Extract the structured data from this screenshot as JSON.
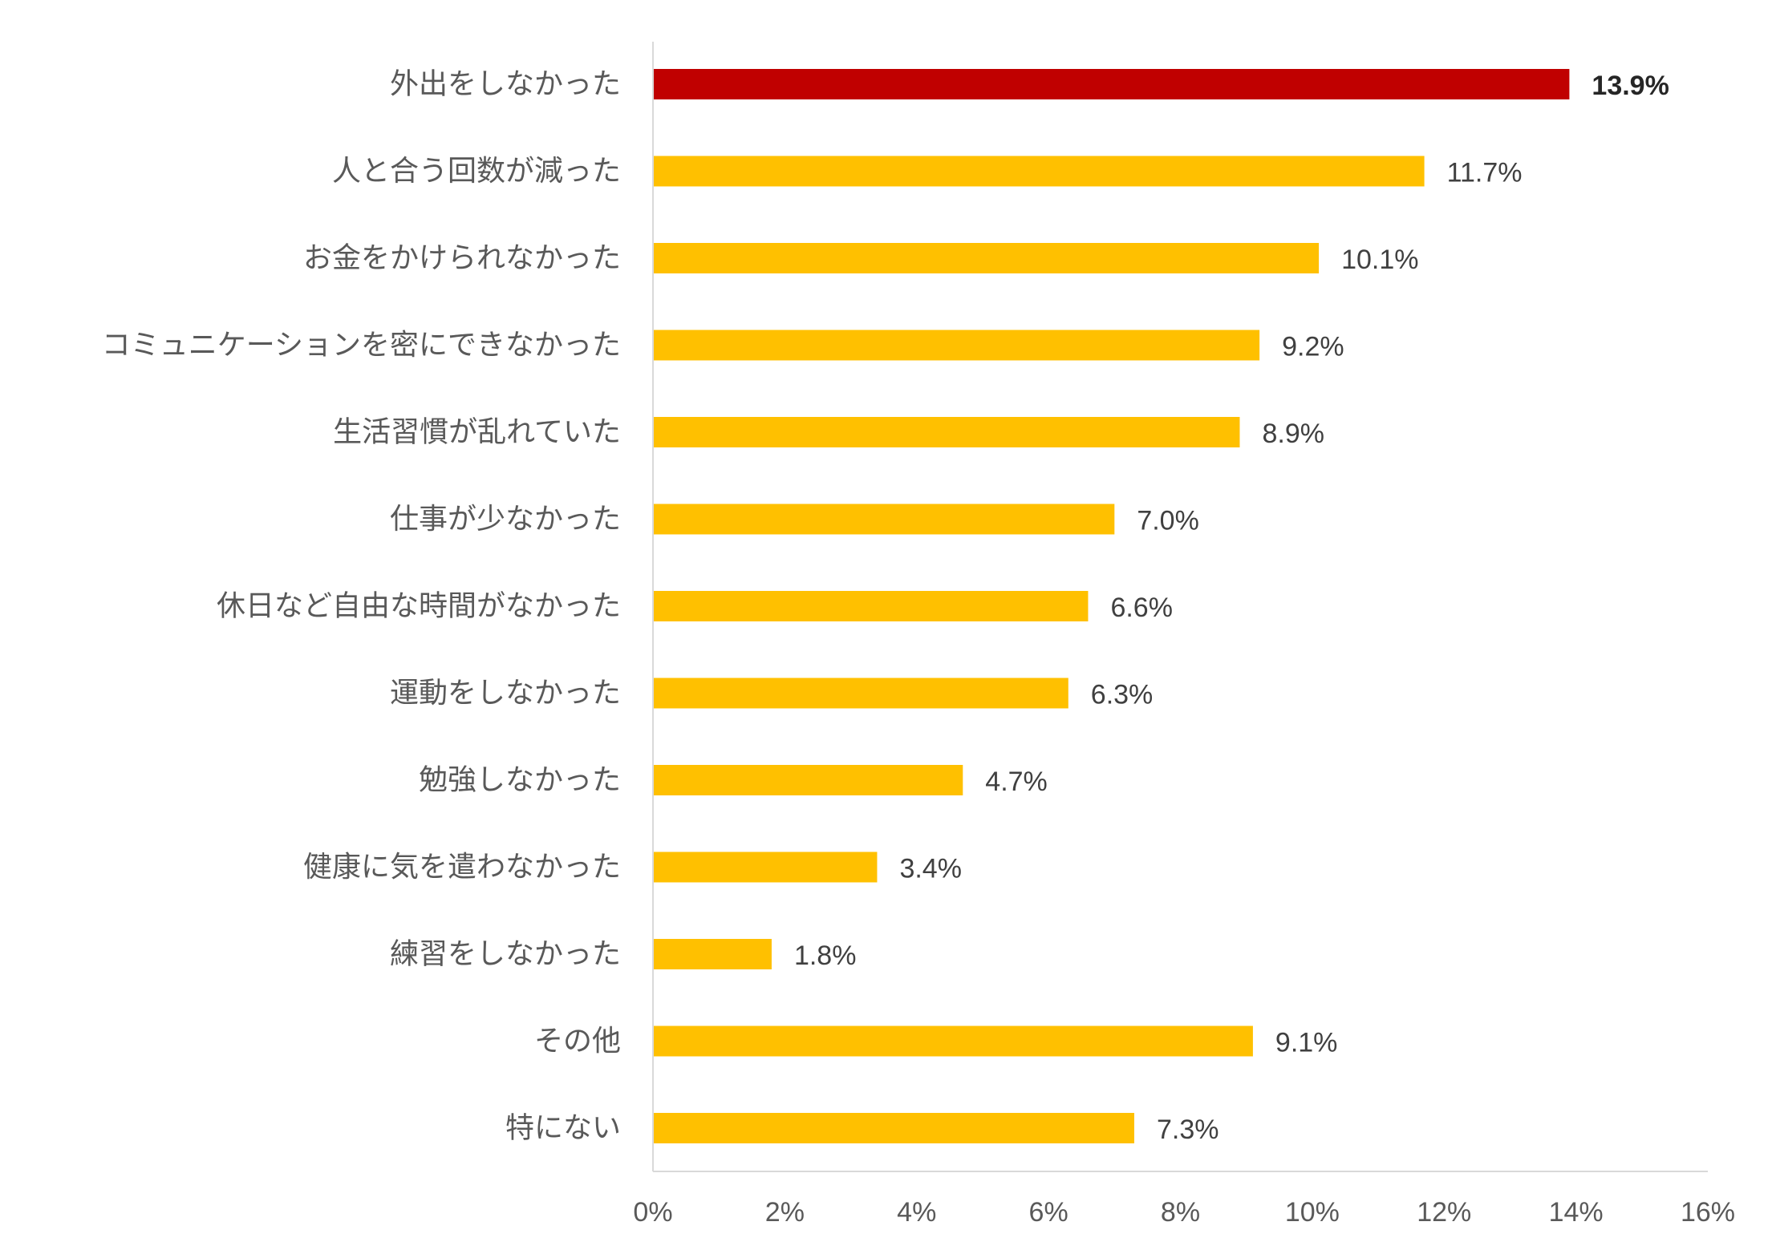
{
  "chart_data": {
    "type": "bar",
    "orientation": "horizontal",
    "categories": [
      "外出をしなかった",
      "人と合う回数が減った",
      "お金をかけられなかった",
      "コミュニケーションを密にできなかった",
      "生活習慣が乱れていた",
      "仕事が少なかった",
      "休日など自由な時間がなかった",
      "運動をしなかった",
      "勉強しなかった",
      "健康に気を遣わなかった",
      "練習をしなかった",
      "その他",
      "特にない"
    ],
    "values": [
      13.9,
      11.7,
      10.1,
      9.2,
      8.9,
      7.0,
      6.6,
      6.3,
      4.7,
      3.4,
      1.8,
      9.1,
      7.3
    ],
    "value_labels": [
      "13.9%",
      "11.7%",
      "10.1%",
      "9.2%",
      "8.9%",
      "7.0%",
      "6.6%",
      "6.3%",
      "4.7%",
      "3.4%",
      "1.8%",
      "9.1%",
      "7.3%"
    ],
    "highlight_index": 0,
    "xlim": [
      0,
      16
    ],
    "x_ticks": [
      0,
      2,
      4,
      6,
      8,
      10,
      12,
      14,
      16
    ],
    "x_tick_labels": [
      "0%",
      "2%",
      "4%",
      "6%",
      "8%",
      "10%",
      "12%",
      "14%",
      "16%"
    ],
    "grid": false,
    "legend": "none",
    "colors": {
      "bar": "#ffc000",
      "highlight": "#c00000",
      "axis": "#d9d9d9"
    }
  }
}
